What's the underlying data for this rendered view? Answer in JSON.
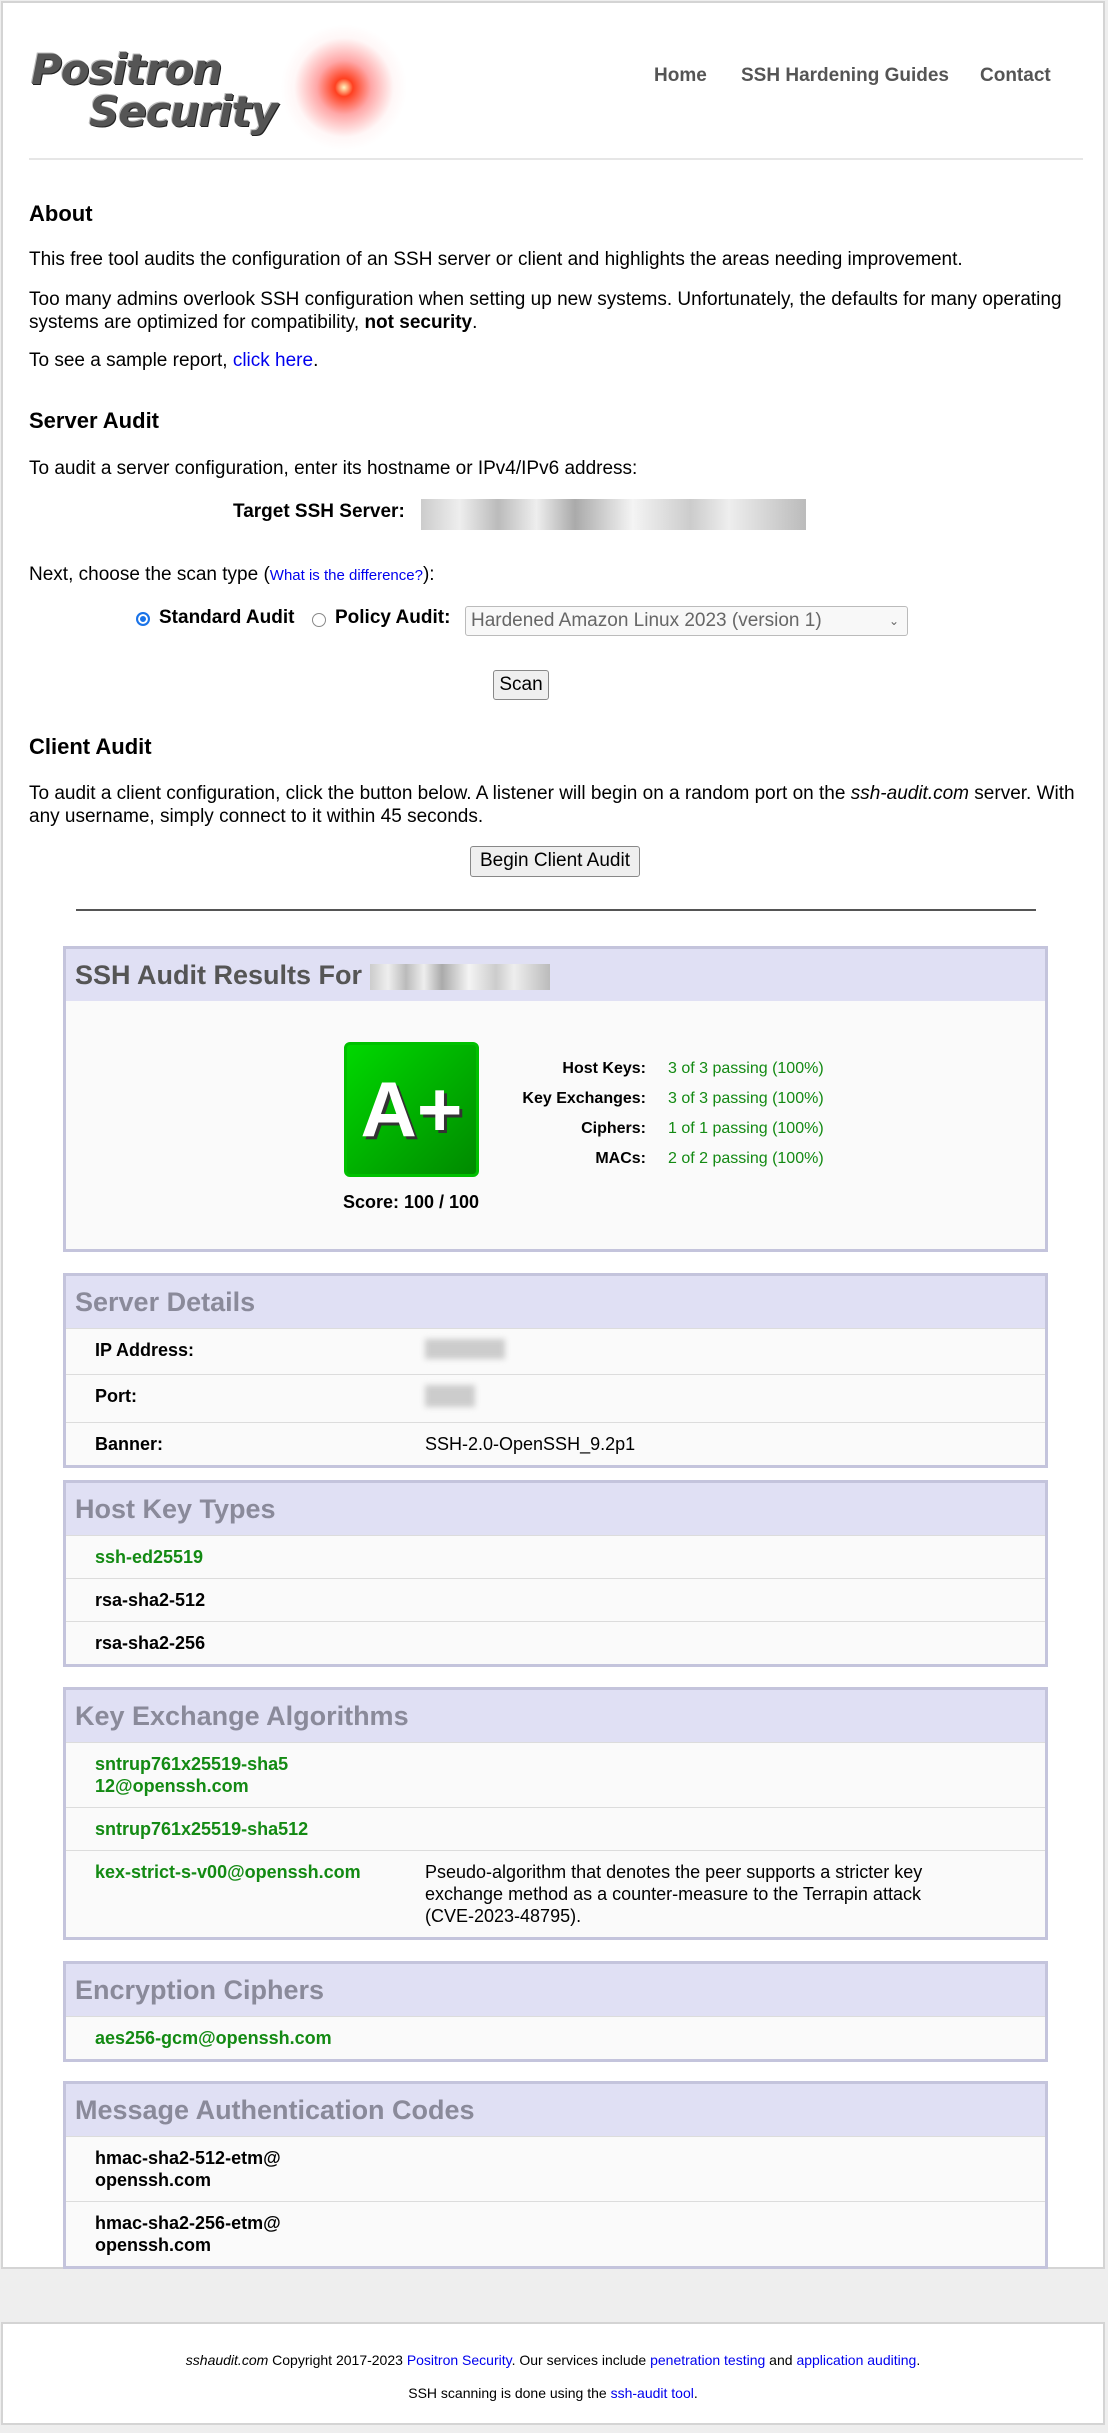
{
  "header": {
    "logo": {
      "line1": "Positron",
      "line2": "Security"
    },
    "nav": [
      "Home",
      "SSH Hardening Guides",
      "Contact"
    ]
  },
  "about": {
    "title": "About",
    "p1": "This free tool audits the configuration of an SSH server or client and highlights the areas needing improvement.",
    "p2": "Too many admins overlook SSH configuration when setting up new systems. Unfortunately, the defaults for many operating systems are optimized for compatibility, ",
    "p2_bold": "not security",
    "p2_end": ".",
    "p3": "To see a sample report, ",
    "p3_link": "click here",
    "p3_end": "."
  },
  "server_audit": {
    "title": "Server Audit",
    "intro": "To audit a server configuration, enter its hostname or IPv4/IPv6 address:",
    "target_label": "Target SSH Server:",
    "scan_type_text": "Next, choose the scan type (",
    "scan_type_link": "What is the difference?",
    "scan_type_end": "):",
    "standard_label": "Standard Audit",
    "standard_selected": true,
    "policy_label": "Policy Audit:",
    "policy_select": "Hardened Amazon Linux 2023 (version 1)",
    "scan_button": "Scan"
  },
  "client_audit": {
    "title": "Client Audit",
    "text1": "To audit a client configuration, click the button below. A listener will begin on a random port on the ",
    "text_italic": "ssh-audit.com",
    "text2": " server. With any username, simply connect to it within 45 seconds.",
    "button": "Begin Client Audit"
  },
  "results": {
    "title": "SSH Audit Results For",
    "grade": "A+",
    "score": "Score: 100 / 100",
    "stats": [
      {
        "label": "Host Keys:",
        "value": "3 of 3 passing (100%)"
      },
      {
        "label": "Key Exchanges:",
        "value": "3 of 3 passing (100%)"
      },
      {
        "label": "Ciphers:",
        "value": "1 of 1 passing (100%)"
      },
      {
        "label": "MACs:",
        "value": "2 of 2 passing (100%)"
      }
    ]
  },
  "server_details": {
    "title": "Server Details",
    "rows": [
      {
        "label": "IP Address:",
        "value": ""
      },
      {
        "label": "Port:",
        "value": ""
      },
      {
        "label": "Banner:",
        "value": "SSH-2.0-OpenSSH_9.2p1"
      }
    ]
  },
  "host_keys": {
    "title": "Host Key Types",
    "items": [
      {
        "name": "ssh-ed25519",
        "green": true
      },
      {
        "name": "rsa-sha2-512",
        "green": false
      },
      {
        "name": "rsa-sha2-256",
        "green": false
      }
    ]
  },
  "kex": {
    "title": "Key Exchange Algorithms",
    "items": [
      {
        "name": "sntrup761x25519-sha512@openssh.com",
        "desc": ""
      },
      {
        "name": "sntrup761x25519-sha512",
        "desc": ""
      },
      {
        "name": "kex-strict-s-v00@openssh.com",
        "desc": "Pseudo-algorithm that denotes the peer supports a stricter key exchange method as a counter-measure to the Terrapin attack (CVE-2023-48795)."
      }
    ]
  },
  "ciphers": {
    "title": "Encryption Ciphers",
    "items": [
      {
        "name": "aes256-gcm@openssh.com"
      }
    ]
  },
  "macs": {
    "title": "Message Authentication Codes",
    "items": [
      {
        "name": "hmac-sha2-512-etm@openssh.com"
      },
      {
        "name": "hmac-sha2-256-etm@openssh.com"
      }
    ]
  },
  "footer": {
    "site": "sshaudit.com",
    "copyright": " Copyright 2017-2023 ",
    "company": "Positron Security",
    "services": ". Our services include ",
    "link1": "penetration testing",
    "and": " and ",
    "link2": "application auditing",
    "end": ".",
    "line2": "SSH scanning is done using the ",
    "link3": "ssh-audit tool",
    "end2": "."
  },
  "colors": {
    "pass_green": "#008000",
    "link": "#0000ee",
    "header_bg": "#e0e0f4",
    "grade_green": "#00b000"
  }
}
